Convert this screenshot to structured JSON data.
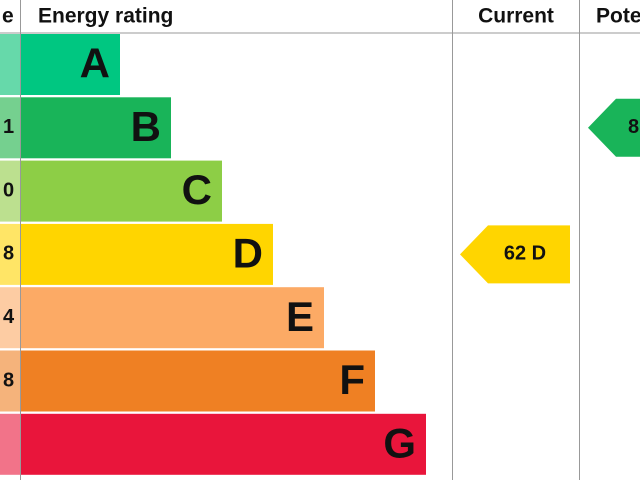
{
  "header": {
    "score": "e",
    "rating": "Energy rating",
    "current": "Current",
    "potential": "Pote"
  },
  "bands": [
    {
      "letter": "A",
      "color": "#00c781",
      "light": "#66d9aa"
    },
    {
      "letter": "B",
      "score": "1",
      "color": "#19b459",
      "light": "#75d08f",
      "potential": "8"
    },
    {
      "letter": "C",
      "score": "0",
      "color": "#8dce46",
      "light": "#bce08f"
    },
    {
      "letter": "D",
      "score": "8",
      "color": "#ffd500",
      "light": "#ffe566",
      "current": "62 D"
    },
    {
      "letter": "E",
      "score": "4",
      "color": "#fcaa65",
      "light": "#fdcca3"
    },
    {
      "letter": "F",
      "score": "8",
      "color": "#ef8023",
      "light": "#f5b37b"
    },
    {
      "letter": "G",
      "color": "#e9153b",
      "light": "#f27389"
    }
  ]
}
